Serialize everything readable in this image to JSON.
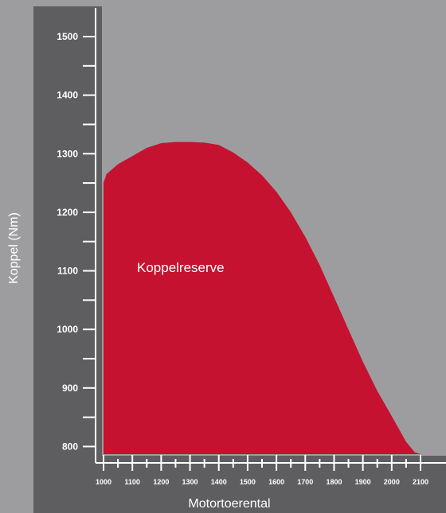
{
  "colors": {
    "background": "#9d9d9f",
    "axis_panel": "#5e5e60",
    "area_fill": "#c41230",
    "axis_line": "#ffffff",
    "text": "#ffffff"
  },
  "chart_data": {
    "type": "area",
    "title": "",
    "xlabel": "Motortoerental",
    "ylabel": "Koppel (Nm)",
    "xlim": [
      1000,
      2100
    ],
    "ylim": [
      787,
      1500
    ],
    "x_ticks": [
      1000,
      1100,
      1200,
      1300,
      1400,
      1500,
      1600,
      1700,
      1800,
      1900,
      2000,
      2100
    ],
    "y_ticks": [
      800,
      900,
      1000,
      1100,
      1200,
      1300,
      1400,
      1500
    ],
    "annotation": "Koppelreserve",
    "series": [
      {
        "x": [
          1000,
          1010,
          1050,
          1100,
          1150,
          1200,
          1250,
          1300,
          1350,
          1400,
          1450,
          1500,
          1550,
          1600,
          1650,
          1700,
          1750,
          1800,
          1850,
          1900,
          1950,
          2000,
          2050,
          2080,
          2100
        ],
        "y": [
          1250,
          1265,
          1282,
          1296,
          1310,
          1318,
          1320,
          1320,
          1319,
          1315,
          1302,
          1285,
          1263,
          1235,
          1200,
          1158,
          1110,
          1055,
          1000,
          945,
          895,
          852,
          808,
          790,
          787
        ]
      }
    ]
  }
}
